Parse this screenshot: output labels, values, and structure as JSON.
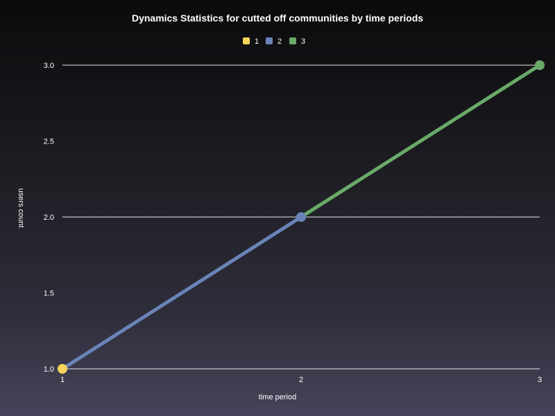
{
  "chart_data": {
    "type": "line",
    "title": "Dynamics Statistics for cutted off communities by time periods",
    "xlabel": "time period",
    "ylabel": "users count",
    "x_ticks": [
      "1",
      "2",
      "3"
    ],
    "y_ticks": [
      "1.0",
      "1.5",
      "2.0",
      "2.5",
      "3.0"
    ],
    "xlim": [
      1,
      3
    ],
    "ylim": [
      1.0,
      3.0
    ],
    "grid": "horizontal lines at 1.0, 2.0, 3.0",
    "legend_position": "top",
    "series": [
      {
        "name": "1",
        "color": "#f7d55a",
        "points": [
          [
            1,
            1.0
          ]
        ]
      },
      {
        "name": "2",
        "color": "#6a84b8",
        "points": [
          [
            1,
            1.0
          ],
          [
            2,
            2.0
          ]
        ]
      },
      {
        "name": "3",
        "color": "#6aaa68",
        "points": [
          [
            2,
            2.0
          ],
          [
            3,
            3.0
          ]
        ]
      }
    ]
  }
}
